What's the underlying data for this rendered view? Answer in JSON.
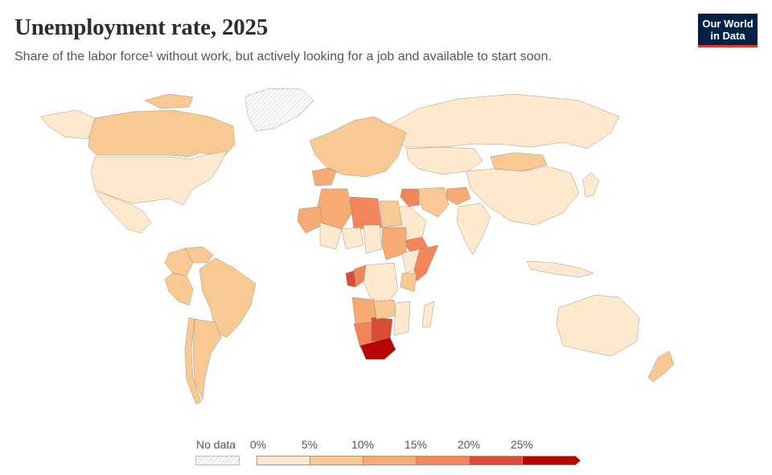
{
  "header": {
    "title": "Unemployment rate, 2025",
    "subtitle": "Share of the labor force¹ without work, but actively looking for a job and available to start soon.",
    "logo_line1": "Our World",
    "logo_line2": "in Data"
  },
  "legend": {
    "no_data_label": "No data",
    "ticks": [
      "0%",
      "5%",
      "10%",
      "15%",
      "20%",
      "25%"
    ],
    "colors": [
      "#fee9cf",
      "#f9c994",
      "#f6ab75",
      "#f3855a",
      "#db4c36",
      "#b60606"
    ]
  },
  "map": {
    "no_data_color": "#e4e4e4",
    "countries": [
      {
        "name": "Canada",
        "value": 6.9
      },
      {
        "name": "United States",
        "value": 4.2
      },
      {
        "name": "Mexico",
        "value": 2.7
      },
      {
        "name": "Greenland",
        "value": null
      },
      {
        "name": "Brazil",
        "value": 7.0
      },
      {
        "name": "Argentina",
        "value": 7.5
      },
      {
        "name": "Colombia",
        "value": 9.0
      },
      {
        "name": "Peru",
        "value": 5.0
      },
      {
        "name": "Chile",
        "value": 8.7
      },
      {
        "name": "Venezuela",
        "value": 5.5
      },
      {
        "name": "Russia",
        "value": 2.5
      },
      {
        "name": "China",
        "value": 4.6
      },
      {
        "name": "Mongolia",
        "value": 6.5
      },
      {
        "name": "Kazakhstan",
        "value": 4.7
      },
      {
        "name": "India",
        "value": 4.2
      },
      {
        "name": "Iran",
        "value": 8.0
      },
      {
        "name": "Saudi Arabia",
        "value": 4.0
      },
      {
        "name": "Iraq",
        "value": 15.5
      },
      {
        "name": "Yemen",
        "value": 17.0
      },
      {
        "name": "Afghanistan",
        "value": 13.0
      },
      {
        "name": "Europe",
        "value": 6.0
      },
      {
        "name": "Spain",
        "value": 11.0
      },
      {
        "name": "Algeria",
        "value": 11.5
      },
      {
        "name": "Libya",
        "value": 18.5
      },
      {
        "name": "Egypt",
        "value": 7.0
      },
      {
        "name": "Mauritania",
        "value": 10.5
      },
      {
        "name": "Mali",
        "value": 3.0
      },
      {
        "name": "Niger",
        "value": 0.6
      },
      {
        "name": "Chad",
        "value": 1.2
      },
      {
        "name": "Sudan",
        "value": 11.0
      },
      {
        "name": "Ethiopia",
        "value": 3.5
      },
      {
        "name": "Somalia",
        "value": 19.0
      },
      {
        "name": "Kenya",
        "value": 5.6
      },
      {
        "name": "DR Congo",
        "value": 4.5
      },
      {
        "name": "Congo",
        "value": 19.0
      },
      {
        "name": "Gabon",
        "value": 20.5
      },
      {
        "name": "Angola",
        "value": 14.5
      },
      {
        "name": "Namibia",
        "value": 19.4
      },
      {
        "name": "Botswana",
        "value": 23.0
      },
      {
        "name": "South Africa",
        "value": 33.2
      },
      {
        "name": "Zambia",
        "value": 5.9
      },
      {
        "name": "Mozambique",
        "value": 3.5
      },
      {
        "name": "Madagascar",
        "value": 2.6
      },
      {
        "name": "Australia",
        "value": 4.1
      },
      {
        "name": "New Zealand",
        "value": 5.1
      },
      {
        "name": "Indonesia",
        "value": 3.3
      },
      {
        "name": "Japan",
        "value": 2.5
      }
    ]
  }
}
